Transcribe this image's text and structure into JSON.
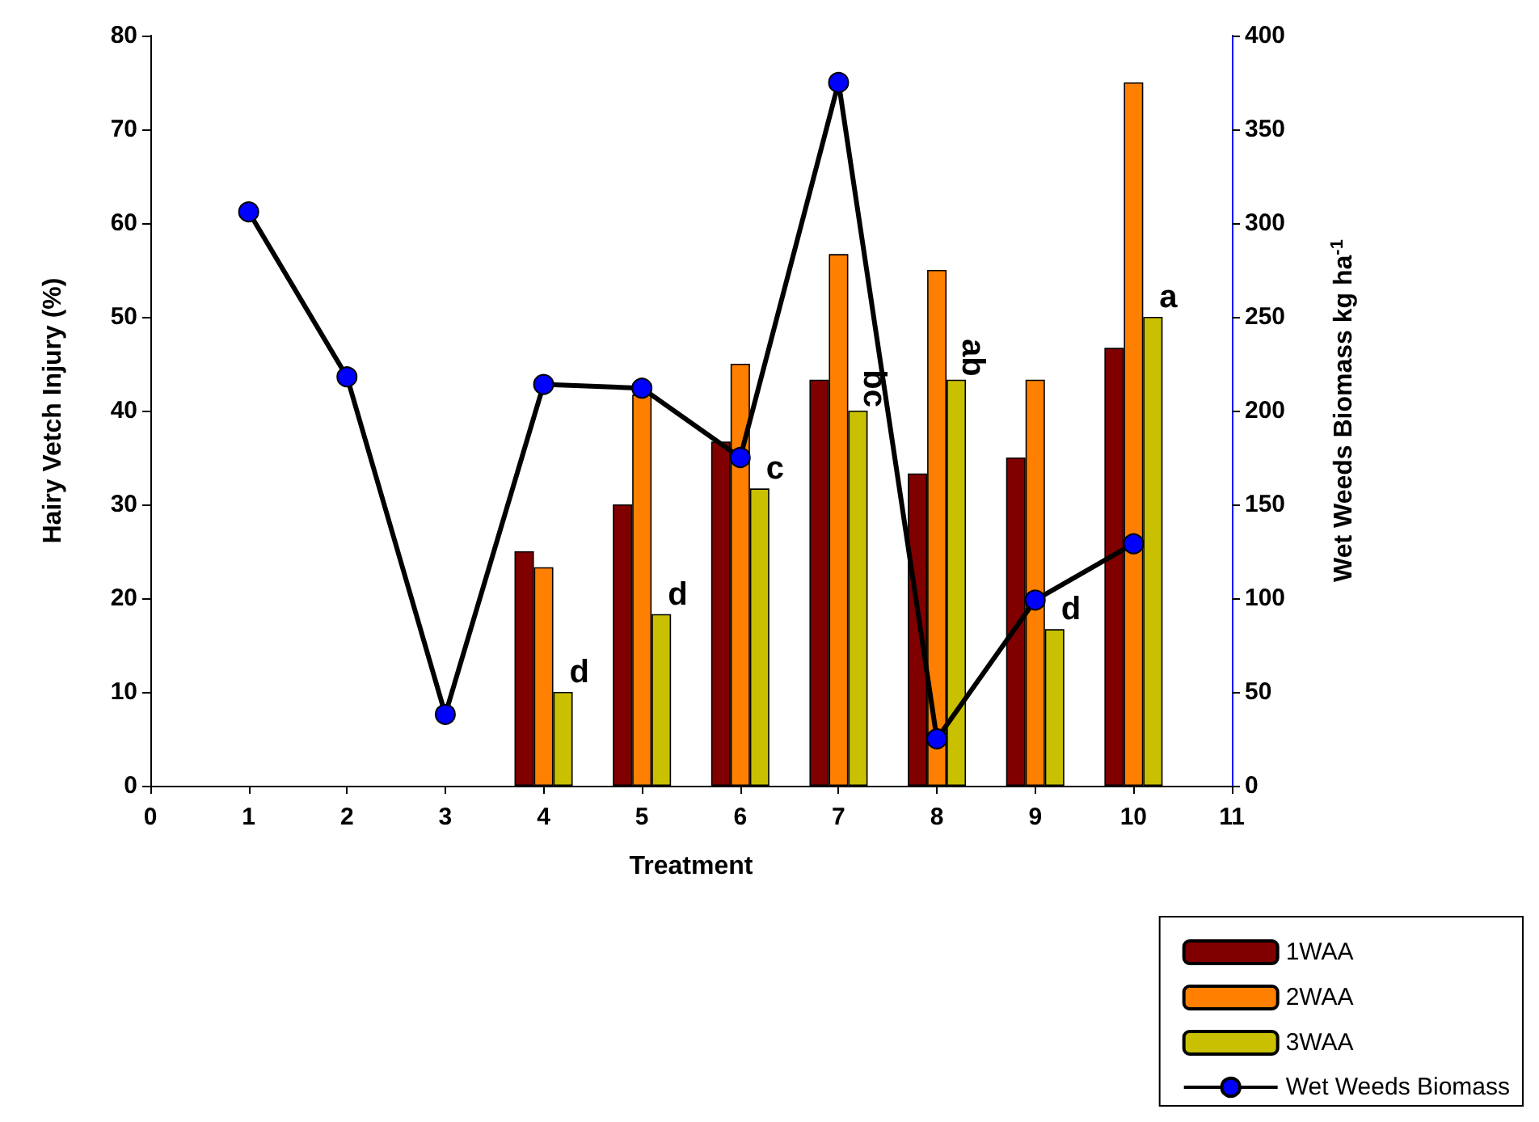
{
  "chart_data": {
    "type": "bar",
    "xlabel": "Treatment",
    "ylabel": "Hairy Vetch Injury (%)",
    "y2label": "Wet Weeds Biomass kg ha$^{-1}$",
    "x": [
      4,
      5,
      6,
      7,
      8,
      9,
      10
    ],
    "series": [
      {
        "name": "1WAA",
        "color": "#800000",
        "values": [
          25,
          30,
          36.7,
          43.3,
          33.3,
          35,
          46.7
        ]
      },
      {
        "name": "2WAA",
        "color": "#ff8000",
        "values": [
          23.3,
          41.7,
          45,
          56.7,
          55,
          43.3,
          75
        ]
      },
      {
        "name": "3WAA",
        "color": "#c8c000",
        "values": [
          10,
          18.3,
          31.7,
          40,
          43.3,
          16.7,
          50
        ]
      },
      {
        "name": "Wet Weeds Biomass",
        "type": "line",
        "axis": "y2",
        "color": "#000000",
        "colors": [
          "#0000ff",
          "#0000ff",
          "#0000ff",
          "#0000ff",
          "#0000ff",
          "#0000ff",
          "#0000ff",
          "#0000ff",
          "#0000ff",
          "#0000ff"
        ],
        "x": [
          1,
          2,
          3,
          4,
          5,
          6,
          7,
          8,
          9,
          10
        ],
        "values": [
          306,
          218,
          38,
          214,
          212,
          175,
          375,
          25,
          99,
          129
        ]
      }
    ],
    "annotations": [
      {
        "text": "d",
        "x": 4,
        "y": 10
      },
      {
        "text": "d",
        "x": 5,
        "y": 18.3
      },
      {
        "text": "c",
        "x": 6,
        "y": 31.7
      },
      {
        "text": "bc",
        "x": 7,
        "y": 40
      },
      {
        "text": "ab",
        "x": 8,
        "y": 43.3
      },
      {
        "text": "d",
        "x": 9,
        "y": 16.7
      },
      {
        "text": "a",
        "x": 10,
        "y": 50
      }
    ],
    "xlim": [
      0,
      11
    ],
    "xticks": [
      0,
      1,
      2,
      3,
      4,
      5,
      6,
      7,
      8,
      9,
      10,
      11
    ],
    "ylim": [
      0,
      80
    ],
    "yticks": [
      0,
      10,
      20,
      30,
      40,
      50,
      60,
      70,
      80
    ],
    "y2lim": [
      0,
      400
    ],
    "y2ticks": [
      0,
      50,
      100,
      150,
      200,
      250,
      300,
      350,
      400
    ],
    "marker": "circle",
    "grid": false,
    "legend": "bottom right"
  }
}
